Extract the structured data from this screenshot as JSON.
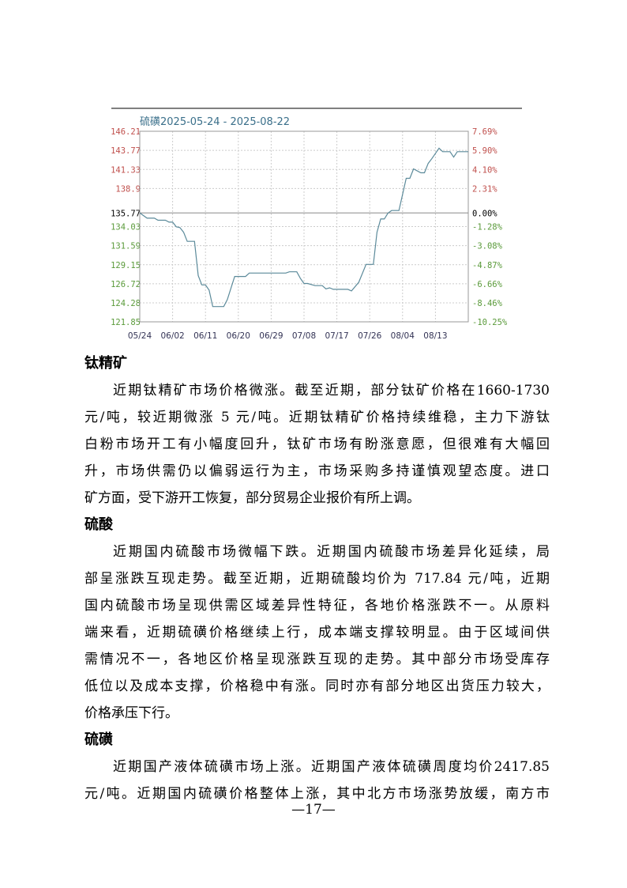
{
  "chart_data": {
    "type": "line",
    "title": "硫磺2025-05-24 - 2025-08-22",
    "year": 2025,
    "x_tick_labels": [
      "05/24",
      "06/02",
      "06/11",
      "06/20",
      "06/29",
      "07/08",
      "07/17",
      "07/26",
      "08/04",
      "08/13"
    ],
    "x_range": [
      "05-24",
      "08-22"
    ],
    "y_left_ticks": [
      "146.21",
      "143.77",
      "141.33",
      "138.9",
      "135.77",
      "134.03",
      "131.59",
      "129.15",
      "126.72",
      "124.28",
      "121.85"
    ],
    "y_right_ticks": [
      "7.69%",
      "5.90%",
      "4.10%",
      "2.31%",
      "0.00%",
      "-1.28%",
      "-3.08%",
      "-4.87%",
      "-6.66%",
      "-8.46%",
      "-10.25%"
    ],
    "ylim": [
      121.85,
      146.21
    ],
    "baseline": 135.77,
    "grid": true,
    "colors": {
      "line": "#5b8a9a",
      "up": "#c0504d",
      "down": "#5a9a3a",
      "title": "#3a6f8a",
      "axis": "#999999"
    },
    "series": [
      {
        "x": [
          "05-24",
          "05-26",
          "05-28",
          "05-29",
          "05-31",
          "06-01",
          "06-02",
          "06-03",
          "06-04",
          "06-05",
          "06-06",
          "06-08",
          "06-09",
          "06-10",
          "06-11",
          "06-12",
          "06-13",
          "06-16",
          "06-17",
          "06-19",
          "06-22",
          "06-23",
          "07-03",
          "07-04",
          "07-06",
          "07-07",
          "07-08",
          "07-09",
          "07-11",
          "07-13",
          "07-14",
          "07-15",
          "07-16",
          "07-20",
          "07-21",
          "07-23",
          "07-25",
          "07-27",
          "07-28",
          "07-29",
          "07-30",
          "07-31",
          "08-01",
          "08-03",
          "08-05",
          "08-06",
          "08-07",
          "08-09",
          "08-10",
          "08-11",
          "08-12",
          "08-14",
          "08-15",
          "08-17",
          "08-18",
          "08-19",
          "08-22"
        ],
        "y": [
          135.77,
          135.1,
          135.1,
          134.84,
          134.84,
          134.6,
          134.6,
          134.0,
          133.9,
          133.3,
          132.14,
          132.14,
          127.76,
          126.57,
          126.57,
          125.9,
          123.8,
          123.8,
          124.7,
          127.65,
          127.65,
          128.09,
          128.09,
          128.25,
          128.25,
          127.4,
          126.75,
          126.75,
          126.48,
          126.48,
          126.07,
          126.2,
          126.0,
          126.0,
          125.8,
          126.9,
          129.2,
          129.2,
          133.3,
          135.0,
          135.0,
          135.75,
          136.08,
          136.08,
          140.2,
          140.2,
          141.4,
          140.9,
          140.9,
          142.1,
          142.7,
          144.05,
          143.6,
          143.6,
          142.9,
          143.6,
          143.6
        ]
      }
    ]
  },
  "sections": [
    {
      "heading": "钛精矿",
      "lines": [
        "近期钛精矿市场价格微涨。截至近期，部分钛矿价格在1660-1730",
        "元/吨，较近期微涨 5 元/吨。近期钛精矿价格持续维稳，主力下游钛",
        "白粉市场开工有小幅度回升，钛矿市场有盼涨意愿，但很难有大幅回",
        "升，市场供需仍以偏弱运行为主，市场采购多持谨慎观望态度。进口",
        "矿方面，受下游开工恢复，部分贸易企业报价有所上调。"
      ]
    },
    {
      "heading": "硫酸",
      "lines": [
        "近期国内硫酸市场微幅下跌。近期国内硫酸市场差异化延续，局",
        "部呈涨跌互现走势。截至近期，近期硫酸均价为 717.84 元/吨，近期",
        "国内硫酸市场呈现供需区域差异性特征，各地价格涨跌不一。从原料",
        "端来看，近期硫磺价格继续上行，成本端支撑较明显。由于区域间供",
        "需情况不一，各地区价格呈现涨跌互现的走势。其中部分市场受库存",
        "低位以及成本支撑，价格稳中有涨。同时亦有部分地区出货压力较大，",
        "价格承压下行。"
      ]
    },
    {
      "heading": "硫磺",
      "lines": [
        "近期国产液体硫磺市场上涨。近期国产液体硫磺周度均价2417.85",
        "元/吨。近期国内硫磺价格整体上涨，其中北方市场涨势放缓，南方市"
      ]
    }
  ],
  "page_number": "—17—"
}
